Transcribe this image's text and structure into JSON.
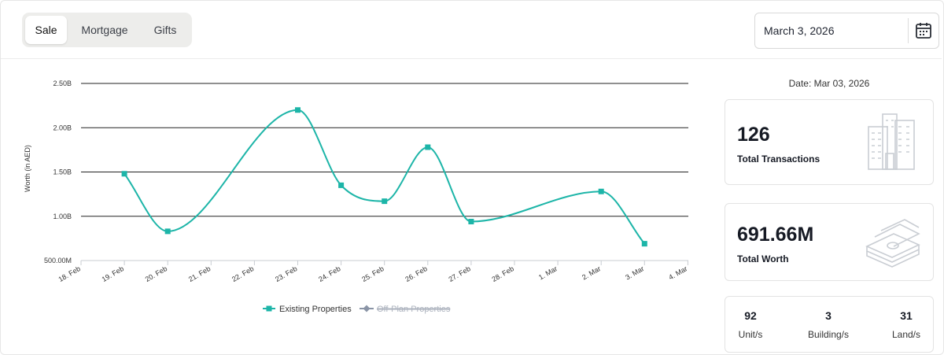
{
  "tabs": [
    "Sale",
    "Mortgage",
    "Gifts"
  ],
  "active_tab": "Sale",
  "date_picker": {
    "value": "March 3, 2026",
    "icon": "calendar-icon"
  },
  "summary": {
    "date_label": "Date: Mar 03, 2026",
    "transactions": {
      "value": "126",
      "label": "Total Transactions",
      "icon": "buildings-icon"
    },
    "worth": {
      "value": "691.66M",
      "label": "Total Worth",
      "icon": "money-stack-icon"
    },
    "breakdown": [
      {
        "value": "92",
        "label": "Unit/s"
      },
      {
        "value": "3",
        "label": "Building/s"
      },
      {
        "value": "31",
        "label": "Land/s"
      }
    ]
  },
  "chart_data": {
    "type": "line",
    "ylabel": "Worth (in AED)",
    "xlabel": "",
    "categories": [
      "18. Feb",
      "19. Feb",
      "20. Feb",
      "21. Feb",
      "22. Feb",
      "23. Feb",
      "24. Feb",
      "25. Feb",
      "26. Feb",
      "27. Feb",
      "28. Feb",
      "1. Mar",
      "2. Mar",
      "3. Mar",
      "4. Mar"
    ],
    "y_ticks": [
      500000000,
      1000000000,
      1500000000,
      2000000000,
      2500000000
    ],
    "y_tick_labels": [
      "500.00M",
      "1.00B",
      "1.50B",
      "2.00B",
      "2.50B"
    ],
    "ylim": [
      500000000,
      2500000000
    ],
    "grid": "horizontal",
    "legend_position": "bottom-center",
    "series": [
      {
        "name": "Existing Properties",
        "color": "#1db5a8",
        "visible": true,
        "points": [
          {
            "x": "19. Feb",
            "y": 1480000000
          },
          {
            "x": "20. Feb",
            "y": 830000000
          },
          {
            "x": "23. Feb",
            "y": 2200000000
          },
          {
            "x": "24. Feb",
            "y": 1350000000
          },
          {
            "x": "25. Feb",
            "y": 1170000000
          },
          {
            "x": "26. Feb",
            "y": 1780000000
          },
          {
            "x": "27. Feb",
            "y": 940000000
          },
          {
            "x": "2. Mar",
            "y": 1280000000
          },
          {
            "x": "3. Mar",
            "y": 690000000
          }
        ]
      },
      {
        "name": "Off-Plan Properties",
        "color": "#8a94a6",
        "visible": false,
        "points": []
      }
    ]
  }
}
